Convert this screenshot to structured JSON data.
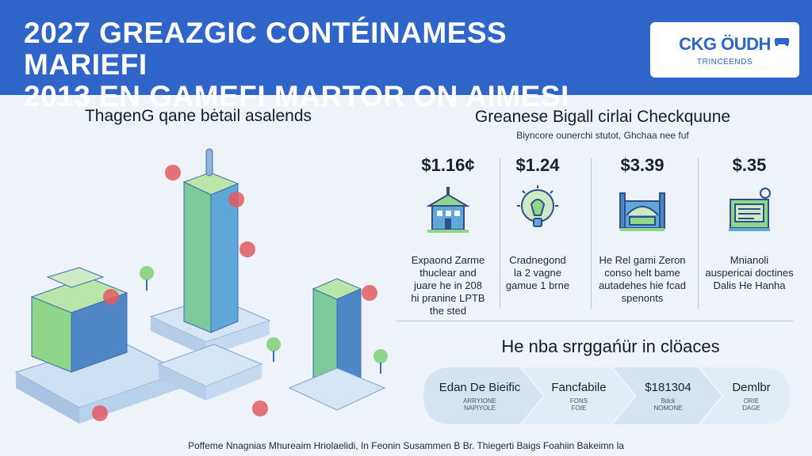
{
  "header": {
    "title_line1": "2027 GREAZGIC CONTÉINAMESS MARIEFI",
    "title_line2": "2013 EN GAMEFI MARTOR ON AIMESI",
    "logo_name": "CKG ÖUDH",
    "logo_sub": "TRINCEENDS"
  },
  "left": {
    "heading": "ThagenG qane bėtail asalends"
  },
  "right": {
    "heading": "Greanese Bigall cirlai Checkquune",
    "subheading": "Biyncore ounerchi stutot, Ghchaa nee fuf",
    "columns": [
      {
        "price": "$1.16¢",
        "icon": "building-icon",
        "desc": [
          "Expaond Zarme",
          "thuclear and",
          "juare he in 208",
          "hi pranine LPTB",
          "the sted"
        ]
      },
      {
        "price": "$1.24",
        "icon": "lightbulb-icon",
        "desc": [
          "Cradnegond",
          "la 2 vagne",
          "gamue 1 brne"
        ]
      },
      {
        "price": "$3.39",
        "icon": "stadium-icon",
        "desc": [
          "He Rel gami Zeron",
          "conso helt bame",
          "autadehes hie fcad",
          "spenonts"
        ]
      },
      {
        "price": "$.35",
        "icon": "document-icon",
        "desc": [
          "Mnianoli",
          "auspericai doctines",
          "Dalis He Hanha"
        ]
      }
    ]
  },
  "flow": {
    "heading": "He nba srrggańür in clöaces",
    "steps": [
      {
        "title": "Edan De Bieific",
        "sub": "ARRYIONE\nNAPIYOLE"
      },
      {
        "title": "Fancfabile",
        "sub": "FONS\nFOIE"
      },
      {
        "title": "$181304",
        "sub": "Bdck\nNOMONE"
      },
      {
        "title": "Demlbr",
        "sub": "ORIE\nDAGE"
      }
    ]
  },
  "footer": {
    "text": "Poffeme Nnagnias Mhureaim Hriolaelidi, In Feonin Susammen B Br. Thiegerti Baigs Foahiin Bakeimn la"
  },
  "colors": {
    "header_bg": "#2f64c8",
    "accent_green": "#8fd68a",
    "accent_blue": "#3a6fb8",
    "red_badge": "#e05a63"
  }
}
